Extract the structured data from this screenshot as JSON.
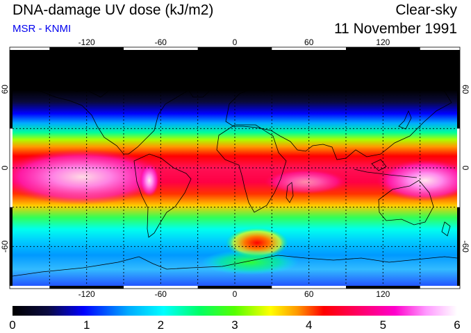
{
  "header": {
    "title": "DNA-damage UV dose (kJ/m2)",
    "credit": "MSR - KNMI",
    "condition": "Clear-sky",
    "date": "11 November 1991"
  },
  "colors": {
    "credit": "#0000ee",
    "scale": [
      "#000000",
      "#0a0a40",
      "#0000ff",
      "#00aaff",
      "#00ffff",
      "#00ff66",
      "#55ff00",
      "#ffff00",
      "#ff9900",
      "#ff0000",
      "#ff0066",
      "#ff00cc",
      "#ff99ff",
      "#ffffff"
    ]
  },
  "map": {
    "projection": "equirectangular",
    "lon_ticks": [
      "-120",
      "-60",
      "0",
      "60",
      "120"
    ],
    "lat_ticks": [
      "60",
      "0",
      "-60"
    ],
    "grid": "dashed, 30 degree spacing"
  },
  "colorbar": {
    "min": 0,
    "max": 6,
    "unit": "kJ/m2",
    "tick_labels": [
      "0",
      "1",
      "2",
      "3",
      "4",
      "5",
      "6"
    ]
  }
}
